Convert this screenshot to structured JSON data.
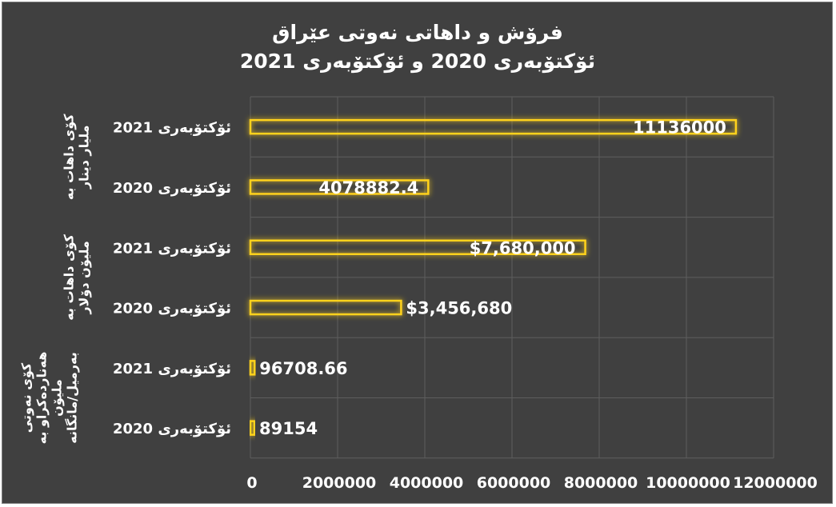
{
  "chart_data": {
    "type": "bar",
    "orientation": "horizontal",
    "title_lines": [
      "فرۆش و داهاتی نەوتی عێراق",
      "ئۆکتۆبەری 2020 و ئۆکتۆبەری 2021"
    ],
    "xlim": [
      0,
      12000000
    ],
    "xticks": [
      "0",
      "2000000",
      "4000000",
      "6000000",
      "8000000",
      "10000000",
      "12000000"
    ],
    "grid": true,
    "legend": "none",
    "bar_color": "#ffd21a",
    "background_color": "#404040",
    "groups": [
      {
        "label_lines": [
          "کۆی داهات بە",
          "ملیار دینار"
        ],
        "rows": [
          {
            "category": "ئۆکتۆبەری 2021",
            "value": 11136000,
            "label": "11136000"
          },
          {
            "category": "ئۆکتۆبەری 2020",
            "value": 4078882.4,
            "label": "4078882.4"
          }
        ]
      },
      {
        "label_lines": [
          "کۆی داهات بە",
          "ملیۆن دۆلار"
        ],
        "rows": [
          {
            "category": "ئۆکتۆبەری 2021",
            "value": 7680000,
            "label": "$7,680,000"
          },
          {
            "category": "ئۆکتۆبەری 2020",
            "value": 3456680,
            "label": "$3,456,680"
          }
        ]
      },
      {
        "label_lines": [
          "کۆی نەوتی",
          "هەناردەکراو بە",
          "ملیۆن",
          "بەرمیل/مانگانە"
        ],
        "rows": [
          {
            "category": "ئۆکتۆبەری 2021",
            "value": 96708.66,
            "label": "96708.66"
          },
          {
            "category": "ئۆکتۆبەری 2020",
            "value": 89154,
            "label": "89154"
          }
        ]
      }
    ]
  }
}
